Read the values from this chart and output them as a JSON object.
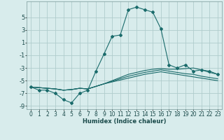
{
  "xlabel": "Humidex (Indice chaleur)",
  "bg_color": "#d8ecec",
  "grid_color": "#b0cccc",
  "line_color": "#1a6b6b",
  "x_values": [
    0,
    1,
    2,
    3,
    4,
    5,
    6,
    7,
    8,
    9,
    10,
    11,
    12,
    13,
    14,
    15,
    16,
    17,
    18,
    19,
    20,
    21,
    22,
    23
  ],
  "line1": [
    -6.0,
    -6.5,
    -6.5,
    -7.0,
    -8.0,
    -8.5,
    -7.0,
    -6.5,
    -3.5,
    -0.8,
    2.0,
    2.2,
    6.2,
    6.6,
    6.2,
    5.8,
    3.2,
    -2.5,
    -3.0,
    -2.5,
    -3.5,
    -3.3,
    -3.5,
    -4.0
  ],
  "line2": [
    -6.0,
    -6.1,
    -6.2,
    -6.3,
    -6.5,
    -6.4,
    -6.2,
    -6.3,
    -5.9,
    -5.5,
    -5.0,
    -4.5,
    -4.0,
    -3.7,
    -3.4,
    -3.2,
    -3.1,
    -3.2,
    -3.2,
    -3.1,
    -3.0,
    -3.3,
    -3.7,
    -4.0
  ],
  "line3": [
    -6.0,
    -6.1,
    -6.2,
    -6.3,
    -6.5,
    -6.4,
    -6.2,
    -6.3,
    -5.9,
    -5.5,
    -5.1,
    -4.7,
    -4.3,
    -4.0,
    -3.7,
    -3.5,
    -3.3,
    -3.5,
    -3.7,
    -3.9,
    -4.0,
    -4.3,
    -4.5,
    -4.7
  ],
  "line4": [
    -6.0,
    -6.1,
    -6.2,
    -6.3,
    -6.5,
    -6.4,
    -6.2,
    -6.3,
    -5.9,
    -5.5,
    -5.2,
    -4.9,
    -4.6,
    -4.3,
    -4.0,
    -3.8,
    -3.6,
    -3.8,
    -4.0,
    -4.2,
    -4.4,
    -4.6,
    -4.8,
    -5.0
  ],
  "ylim": [
    -9.5,
    7.5
  ],
  "xlim": [
    -0.5,
    23.5
  ],
  "yticks": [
    -9,
    -7,
    -5,
    -3,
    -1,
    1,
    3,
    5
  ],
  "tick_fontsize": 5.5,
  "xlabel_fontsize": 6.0
}
